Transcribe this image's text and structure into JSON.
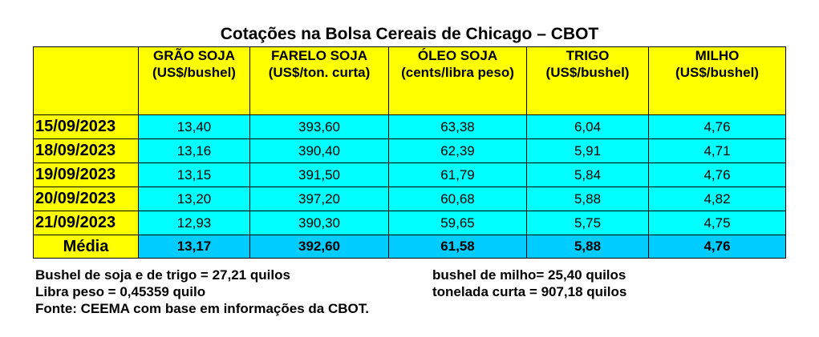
{
  "title": "Cotações na Bolsa Cereais de Chicago – CBOT",
  "columns": [
    {
      "name": "GRÃO SOJA",
      "unit": "(US$/bushel)"
    },
    {
      "name": "FARELO SOJA",
      "unit": "(US$/ton. curta)"
    },
    {
      "name": "ÓLEO SOJA",
      "unit": "(cents/libra peso)"
    },
    {
      "name": "TRIGO",
      "unit": "(US$/bushel)"
    },
    {
      "name": "MILHO",
      "unit": "(US$/bushel)"
    }
  ],
  "rows": [
    {
      "date": "15/09/2023",
      "values": [
        "13,40",
        "393,60",
        "63,38",
        "6,04",
        "4,76"
      ]
    },
    {
      "date": "18/09/2023",
      "values": [
        "13,16",
        "390,40",
        "62,39",
        "5,91",
        "4,71"
      ]
    },
    {
      "date": "19/09/2023",
      "values": [
        "13,15",
        "391,50",
        "61,79",
        "5,84",
        "4,76"
      ]
    },
    {
      "date": "20/09/2023",
      "values": [
        "13,20",
        "397,20",
        "60,68",
        "5,88",
        "4,82"
      ]
    },
    {
      "date": "21/09/2023",
      "values": [
        "12,93",
        "390,30",
        "59,65",
        "5,75",
        "4,75"
      ]
    }
  ],
  "average": {
    "label": "Média",
    "values": [
      "13,17",
      "392,60",
      "61,58",
      "5,88",
      "4,76"
    ]
  },
  "notes": {
    "bushel_soja_trigo": "Bushel de soja e de trigo = 27,21 quilos",
    "bushel_milho": "bushel de milho= 25,40 quilos",
    "libra_peso": "Libra peso = 0,45359 quilo",
    "tonelada_curta": "tonelada curta = 907,18 quilos",
    "fonte": "Fonte: CEEMA com base em informações da CBOT."
  },
  "colors": {
    "header": "#ffff00",
    "cells": "#00ffff",
    "average": "#00ccff"
  }
}
